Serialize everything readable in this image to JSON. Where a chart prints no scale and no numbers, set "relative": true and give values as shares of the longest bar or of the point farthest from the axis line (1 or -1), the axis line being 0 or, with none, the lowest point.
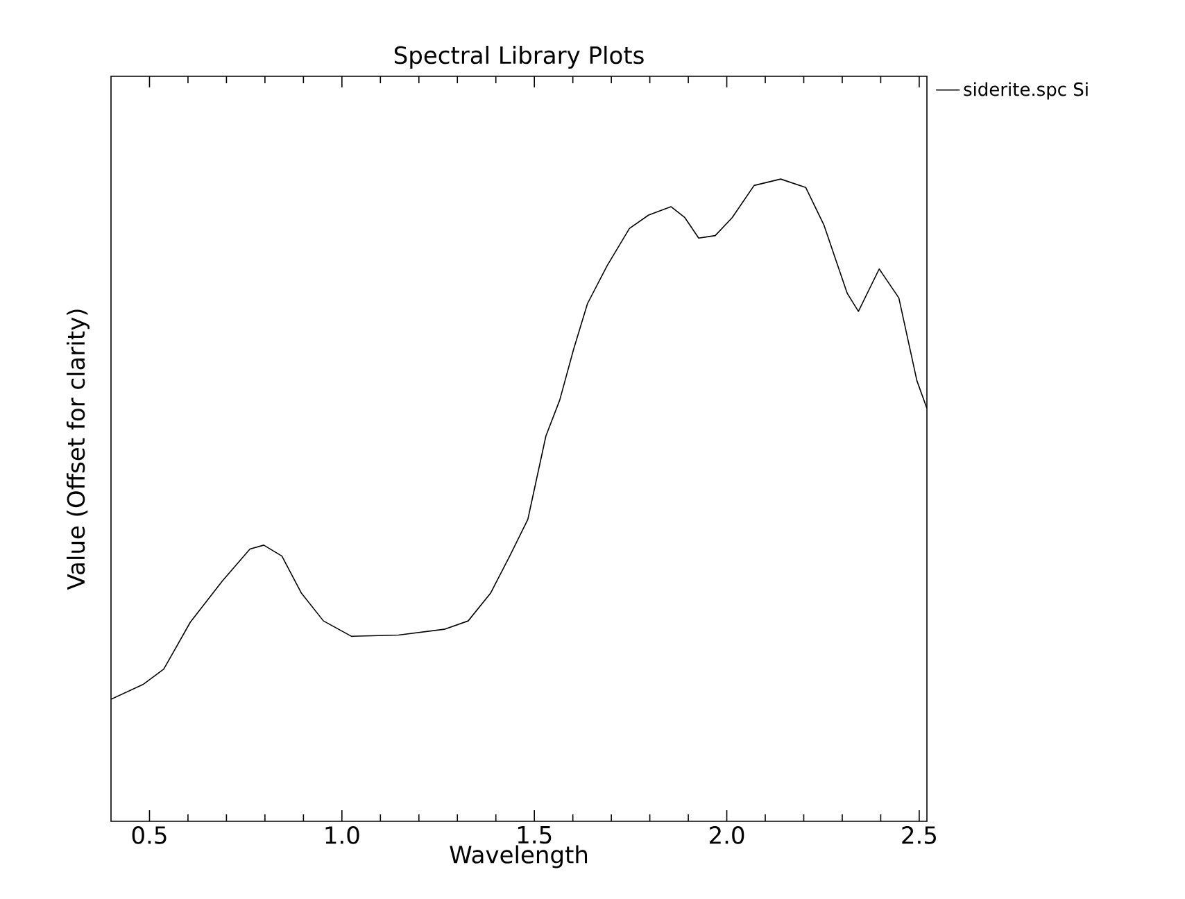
{
  "chart_data": {
    "type": "line",
    "title": "Spectral Library Plots",
    "xlabel": "Wavelength",
    "ylabel": "Value (Offset for clarity)",
    "relative": true,
    "xlim": [
      0.4,
      2.52
    ],
    "xticks": [
      0.5,
      {
        "value": 1,
        "label": "1.0"
      },
      1.5,
      {
        "value": 2,
        "label": "2.0"
      },
      2.5
    ],
    "legend": "top right",
    "grid": false,
    "marker": "none",
    "line_style": "solid",
    "x": [
      0.4,
      0.483,
      0.537,
      0.606,
      0.689,
      0.761,
      0.797,
      0.844,
      0.895,
      0.952,
      1.025,
      1.147,
      1.266,
      1.328,
      1.386,
      1.436,
      1.483,
      1.53,
      1.566,
      1.602,
      1.638,
      1.689,
      1.747,
      1.797,
      1.855,
      1.891,
      1.927,
      1.97,
      2.014,
      2.071,
      2.14,
      2.205,
      2.252,
      2.313,
      2.342,
      2.396,
      2.447,
      2.494,
      2.52
    ],
    "series": [
      {
        "name": "siderite.spc Si",
        "color": "#000000",
        "values": [
          0.19,
          0.213,
          0.237,
          0.31,
          0.374,
          0.424,
          0.43,
          0.413,
          0.355,
          0.312,
          0.288,
          0.29,
          0.299,
          0.312,
          0.355,
          0.413,
          0.47,
          0.6,
          0.656,
          0.735,
          0.806,
          0.865,
          0.923,
          0.944,
          0.957,
          0.94,
          0.908,
          0.912,
          0.94,
          0.99,
          1.0,
          0.987,
          0.929,
          0.822,
          0.794,
          0.86,
          0.815,
          0.686,
          0.643
        ]
      }
    ]
  }
}
